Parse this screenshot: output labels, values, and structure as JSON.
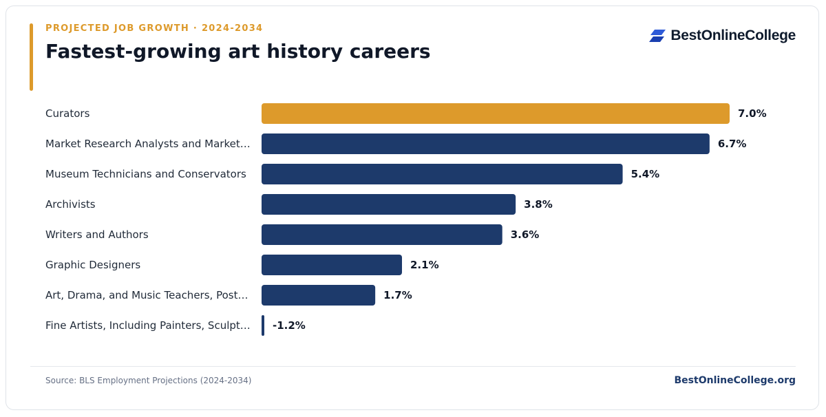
{
  "header": {
    "eyebrow": "PROJECTED JOB GROWTH · 2024-2034",
    "title": "Fastest-growing art history careers"
  },
  "brand": {
    "logo_text": "BestOnlineCollege",
    "logo_icon": "parallelogram-stack-icon"
  },
  "colors": {
    "highlight": "#dd9a2b",
    "bar": "#1d3a6b",
    "text": "#101828"
  },
  "chart_data": {
    "type": "bar",
    "orientation": "horizontal",
    "categories": [
      "Curators",
      "Market Research Analysts and Market…",
      "Museum Technicians and Conservators",
      "Archivists",
      "Writers and Authors",
      "Graphic Designers",
      "Art, Drama, and Music Teachers, Post…",
      "Fine Artists, Including Painters, Sculpt…"
    ],
    "values": [
      7.0,
      6.7,
      5.4,
      3.8,
      3.6,
      2.1,
      1.7,
      -1.2
    ],
    "value_labels": [
      "7.0%",
      "6.7%",
      "5.4%",
      "3.8%",
      "3.6%",
      "2.1%",
      "1.7%",
      "-1.2%"
    ],
    "highlight_index": 0,
    "xlim": [
      0,
      7.0
    ],
    "grid": false,
    "legend": "none"
  },
  "footer": {
    "source": "Source: BLS Employment Projections (2024-2034)",
    "site": "BestOnlineCollege.org"
  }
}
